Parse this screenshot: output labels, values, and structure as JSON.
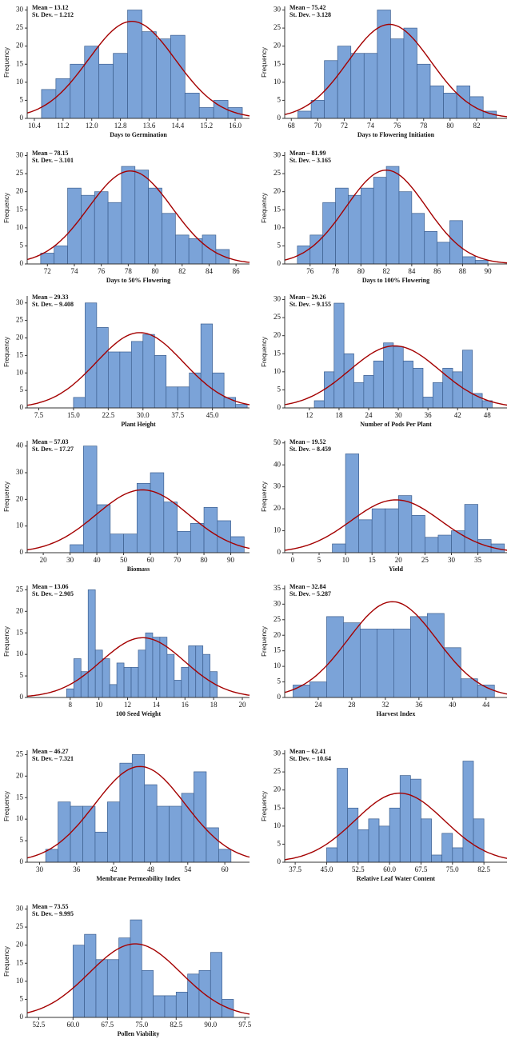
{
  "chart_data": [
    {
      "type": "histogram",
      "xlabel": "Days to Germination",
      "ylabel": "Frequency",
      "normal_fit": {
        "mean": 13.12,
        "sd": 1.212,
        "labels": [
          "Mean – 13.12",
          "St. Dev. – 1.212"
        ]
      },
      "bins": [
        10.6,
        11.0,
        11.4,
        11.8,
        12.2,
        12.6,
        13.0,
        13.4,
        13.8,
        14.2,
        14.6,
        15.0,
        15.4,
        15.8,
        16.2
      ],
      "counts": [
        8,
        11,
        15,
        20,
        15,
        18,
        30,
        24,
        22,
        23,
        7,
        3,
        5,
        3
      ],
      "xlim": [
        10.2,
        16.4
      ],
      "xticks": [
        10.4,
        11.2,
        {
          "value": 12,
          "label": "12.0"
        },
        12.8,
        13.6,
        14.4,
        15.2,
        {
          "value": 16,
          "label": "16.0"
        }
      ],
      "ylim": [
        0,
        31
      ],
      "yticks": [
        0,
        5,
        10,
        15,
        20,
        25,
        30
      ],
      "color": "#7ba3d8"
    },
    {
      "type": "histogram",
      "xlabel": "Days to Flowering Initiation",
      "ylabel": "Frequency",
      "normal_fit": {
        "mean": 75.42,
        "sd": 3.128,
        "labels": [
          "Mean – 75.42",
          "St. Dev. – 3.128"
        ]
      },
      "bins": [
        68.5,
        69.5,
        70.5,
        71.5,
        72.5,
        73.5,
        74.5,
        75.5,
        76.5,
        77.5,
        78.5,
        79.5,
        80.5,
        81.5,
        82.5,
        83.5
      ],
      "counts": [
        2,
        5,
        16,
        20,
        18,
        18,
        30,
        22,
        25,
        15,
        9,
        7,
        9,
        6,
        2
      ],
      "xlim": [
        67.5,
        84.3
      ],
      "xticks": [
        68,
        70,
        72,
        74,
        76,
        78,
        80,
        82
      ],
      "ylim": [
        0,
        31
      ],
      "yticks": [
        0,
        5,
        10,
        15,
        20,
        25,
        30
      ],
      "color": "#7ba3d8"
    },
    {
      "type": "histogram",
      "xlabel": "Days to 50% Flowering",
      "ylabel": "Frequency",
      "normal_fit": {
        "mean": 78.15,
        "sd": 3.101,
        "labels": [
          "Mean – 78.15",
          "St. Dev. – 3.101"
        ]
      },
      "bins": [
        71.5,
        72.5,
        73.5,
        74.5,
        75.5,
        76.5,
        77.5,
        78.5,
        79.5,
        80.5,
        81.5,
        82.5,
        83.5,
        84.5,
        85.5
      ],
      "counts": [
        3,
        5,
        21,
        19,
        20,
        17,
        27,
        26,
        21,
        14,
        8,
        7,
        8,
        4
      ],
      "xlim": [
        70.5,
        87
      ],
      "xticks": [
        72,
        74,
        76,
        78,
        80,
        82,
        84,
        86
      ],
      "ylim": [
        0,
        31
      ],
      "yticks": [
        0,
        5,
        10,
        15,
        20,
        25,
        30
      ],
      "color": "#7ba3d8"
    },
    {
      "type": "histogram",
      "xlabel": "Days to 100% Flowering",
      "ylabel": "Frequency",
      "normal_fit": {
        "mean": 81.99,
        "sd": 3.165,
        "labels": [
          "Mean – 81.99",
          "St. Dev. – 3.165"
        ]
      },
      "bins": [
        75,
        76,
        77,
        78,
        79,
        80,
        81,
        82,
        83,
        84,
        85,
        86,
        87,
        88,
        89,
        90
      ],
      "counts": [
        5,
        8,
        17,
        21,
        19,
        21,
        24,
        27,
        20,
        14,
        9,
        6,
        12,
        2,
        1
      ],
      "xlim": [
        74,
        91.5
      ],
      "xticks": [
        76,
        78,
        80,
        82,
        84,
        86,
        88,
        90
      ],
      "ylim": [
        0,
        31
      ],
      "yticks": [
        0,
        5,
        10,
        15,
        20,
        25,
        30
      ],
      "color": "#7ba3d8"
    },
    {
      "type": "histogram",
      "xlabel": "Plant Height",
      "ylabel": "Frequency",
      "normal_fit": {
        "mean": 29.33,
        "sd": 9.408,
        "labels": [
          "Mean – 29.33",
          "St. Dev. – 9.408"
        ]
      },
      "bins": [
        15,
        17.5,
        20,
        22.5,
        25,
        27.5,
        30,
        32.5,
        35,
        37.5,
        40,
        42.5,
        45,
        47.5,
        50,
        52.5
      ],
      "counts": [
        3,
        30,
        23,
        16,
        16,
        19,
        21,
        15,
        6,
        6,
        10,
        24,
        10,
        3,
        1
      ],
      "xlim": [
        5,
        53
      ],
      "xticks": [
        7.5,
        {
          "value": 15,
          "label": "15.0"
        },
        22.5,
        {
          "value": 30,
          "label": "30.0"
        },
        37.5,
        {
          "value": 45,
          "label": "45.0"
        }
      ],
      "ylim": [
        0,
        32
      ],
      "yticks": [
        0,
        5,
        10,
        15,
        20,
        25,
        30
      ],
      "color": "#7ba3d8"
    },
    {
      "type": "histogram",
      "xlabel": "Number of Pods Per Plant",
      "ylabel": "Frequency",
      "normal_fit": {
        "mean": 29.26,
        "sd": 9.155,
        "labels": [
          "Mean – 29.26",
          "St. Dev. – 9.155"
        ]
      },
      "bins": [
        13,
        15,
        17,
        19,
        21,
        23,
        25,
        27,
        29,
        31,
        33,
        35,
        37,
        39,
        41,
        43,
        45,
        47,
        49
      ],
      "counts": [
        2,
        10,
        29,
        15,
        7,
        9,
        13,
        18,
        17,
        13,
        11,
        3,
        7,
        11,
        10,
        16,
        4,
        2
      ],
      "xlim": [
        7,
        52
      ],
      "xticks": [
        12,
        18,
        24,
        30,
        36,
        42,
        48
      ],
      "ylim": [
        0,
        31
      ],
      "yticks": [
        0,
        5,
        10,
        15,
        20,
        25,
        30
      ],
      "color": "#7ba3d8"
    },
    {
      "type": "histogram",
      "xlabel": "Biomass",
      "ylabel": "Frequency",
      "normal_fit": {
        "mean": 57.03,
        "sd": 17.27,
        "labels": [
          "Mean – 57.03",
          "St. Dev. – 17.27"
        ]
      },
      "bins": [
        30,
        35,
        40,
        45,
        50,
        55,
        60,
        65,
        70,
        75,
        80,
        85,
        90,
        95
      ],
      "counts": [
        3,
        40,
        18,
        7,
        7,
        26,
        30,
        19,
        8,
        11,
        17,
        12,
        6
      ],
      "xlim": [
        14,
        97
      ],
      "xticks": [
        20,
        30,
        40,
        50,
        60,
        70,
        80,
        90
      ],
      "ylim": [
        0,
        42
      ],
      "yticks": [
        0,
        10,
        20,
        30,
        40
      ],
      "color": "#7ba3d8"
    },
    {
      "type": "histogram",
      "xlabel": "Yield",
      "ylabel": "Frequency",
      "normal_fit": {
        "mean": 19.52,
        "sd": 8.459,
        "labels": [
          "Mean – 19.52",
          "St. Dev. – 8.459"
        ]
      },
      "bins": [
        7.5,
        10,
        12.5,
        15,
        17.5,
        20,
        22.5,
        25,
        27.5,
        30,
        32.5,
        35,
        37.5,
        40
      ],
      "counts": [
        4,
        45,
        15,
        20,
        20,
        26,
        17,
        7,
        8,
        10,
        22,
        6,
        4
      ],
      "xlim": [
        -1.5,
        40.5
      ],
      "xticks": [
        0,
        5,
        10,
        15,
        20,
        25,
        30,
        35
      ],
      "ylim": [
        0,
        51
      ],
      "yticks": [
        0,
        10,
        20,
        30,
        40,
        50
      ],
      "color": "#7ba3d8"
    },
    {
      "type": "histogram",
      "xlabel": "100 Seed Weight",
      "ylabel": "Frequency",
      "normal_fit": {
        "mean": 13.06,
        "sd": 2.905,
        "labels": [
          "Mean – 13.06",
          "St. Dev. – 2.905"
        ]
      },
      "bins": [
        7.75,
        8.25,
        8.75,
        9.25,
        9.75,
        10.25,
        10.75,
        11.25,
        11.75,
        12.25,
        12.75,
        13.25,
        13.75,
        14.25,
        14.75,
        15.25,
        15.75,
        16.25,
        16.75,
        17.25,
        17.75,
        18.25
      ],
      "counts": [
        2,
        9,
        6,
        25,
        11,
        9,
        3,
        8,
        7,
        7,
        11,
        15,
        14,
        14,
        10,
        4,
        7,
        12,
        12,
        10,
        6
      ],
      "xlim": [
        5,
        20.5
      ],
      "xticks": [
        8,
        10,
        12,
        14,
        16,
        18,
        20
      ],
      "ylim": [
        0,
        26
      ],
      "yticks": [
        0,
        5,
        10,
        15,
        20,
        25
      ],
      "color": "#7ba3d8"
    },
    {
      "type": "histogram",
      "xlabel": "Harvest Index",
      "ylabel": "Frequency",
      "normal_fit": {
        "mean": 32.84,
        "sd": 5.287,
        "labels": [
          "Mean – 32.84",
          "St. Dev. – 5.287"
        ]
      },
      "bins": [
        21,
        23,
        25,
        27,
        29,
        31,
        33,
        35,
        37,
        39,
        41,
        43,
        45
      ],
      "counts": [
        4,
        5,
        26,
        24,
        22,
        22,
        22,
        26,
        27,
        16,
        6,
        4
      ],
      "xlim": [
        20,
        46.5
      ],
      "xticks": [
        24,
        28,
        32,
        36,
        40,
        44
      ],
      "ylim": [
        0,
        36
      ],
      "yticks": [
        0,
        5,
        10,
        15,
        20,
        25,
        30,
        35
      ],
      "color": "#7ba3d8"
    },
    {
      "type": "histogram",
      "xlabel": "Membrane Permeability Index",
      "ylabel": "Frequency",
      "normal_fit": {
        "mean": 46.27,
        "sd": 7.321,
        "labels": [
          "Mean – 46.27",
          "St. Dev. – 7.321"
        ]
      },
      "bins": [
        31,
        33,
        35,
        37,
        39,
        41,
        43,
        45,
        47,
        49,
        51,
        53,
        55,
        57,
        59,
        61
      ],
      "counts": [
        3,
        14,
        13,
        13,
        7,
        14,
        23,
        25,
        18,
        13,
        13,
        16,
        21,
        8,
        3
      ],
      "xlim": [
        28,
        64
      ],
      "xticks": [
        30,
        36,
        42,
        48,
        54,
        60
      ],
      "ylim": [
        0,
        26
      ],
      "yticks": [
        0,
        5,
        10,
        15,
        20,
        25
      ],
      "color": "#7ba3d8"
    },
    {
      "type": "histogram",
      "xlabel": "Relative Leaf Water Content",
      "ylabel": "Frequency",
      "normal_fit": {
        "mean": 62.41,
        "sd": 10.64,
        "labels": [
          "Mean – 62.41",
          "St. Dev. – 10.64"
        ]
      },
      "bins": [
        45,
        47.5,
        50,
        52.5,
        55,
        57.5,
        60,
        62.5,
        65,
        67.5,
        70,
        72.5,
        75,
        77.5,
        80,
        82.5
      ],
      "counts": [
        4,
        26,
        15,
        9,
        12,
        10,
        15,
        24,
        23,
        12,
        2,
        8,
        4,
        28,
        12
      ],
      "xlim": [
        35,
        88
      ],
      "xticks": [
        37.5,
        {
          "value": 45,
          "label": "45.0"
        },
        52.5,
        {
          "value": 60,
          "label": "60.0"
        },
        67.5,
        {
          "value": 75,
          "label": "75.0"
        },
        82.5
      ],
      "ylim": [
        0,
        31
      ],
      "yticks": [
        0,
        5,
        10,
        15,
        20,
        25,
        30
      ],
      "color": "#7ba3d8"
    },
    {
      "type": "histogram",
      "xlabel": "Pollen Viability",
      "ylabel": "Frequency",
      "normal_fit": {
        "mean": 73.55,
        "sd": 9.995,
        "labels": [
          "Mean – 73.55",
          "St. Dev. – 9.995"
        ]
      },
      "bins": [
        60,
        62.5,
        65,
        67.5,
        70,
        72.5,
        75,
        77.5,
        80,
        82.5,
        85,
        87.5,
        90,
        92.5,
        95
      ],
      "counts": [
        20,
        23,
        16,
        16,
        22,
        27,
        13,
        6,
        6,
        7,
        12,
        13,
        18,
        5
      ],
      "xlim": [
        50,
        98.5
      ],
      "xticks": [
        52.5,
        {
          "value": 60,
          "label": "60.0"
        },
        67.5,
        {
          "value": 75,
          "label": "75.0"
        },
        82.5,
        {
          "value": 90,
          "label": "90.0"
        },
        97.5
      ],
      "ylim": [
        0,
        31
      ],
      "yticks": [
        0,
        5,
        10,
        15,
        20,
        25,
        30
      ],
      "color": "#7ba3d8"
    }
  ]
}
